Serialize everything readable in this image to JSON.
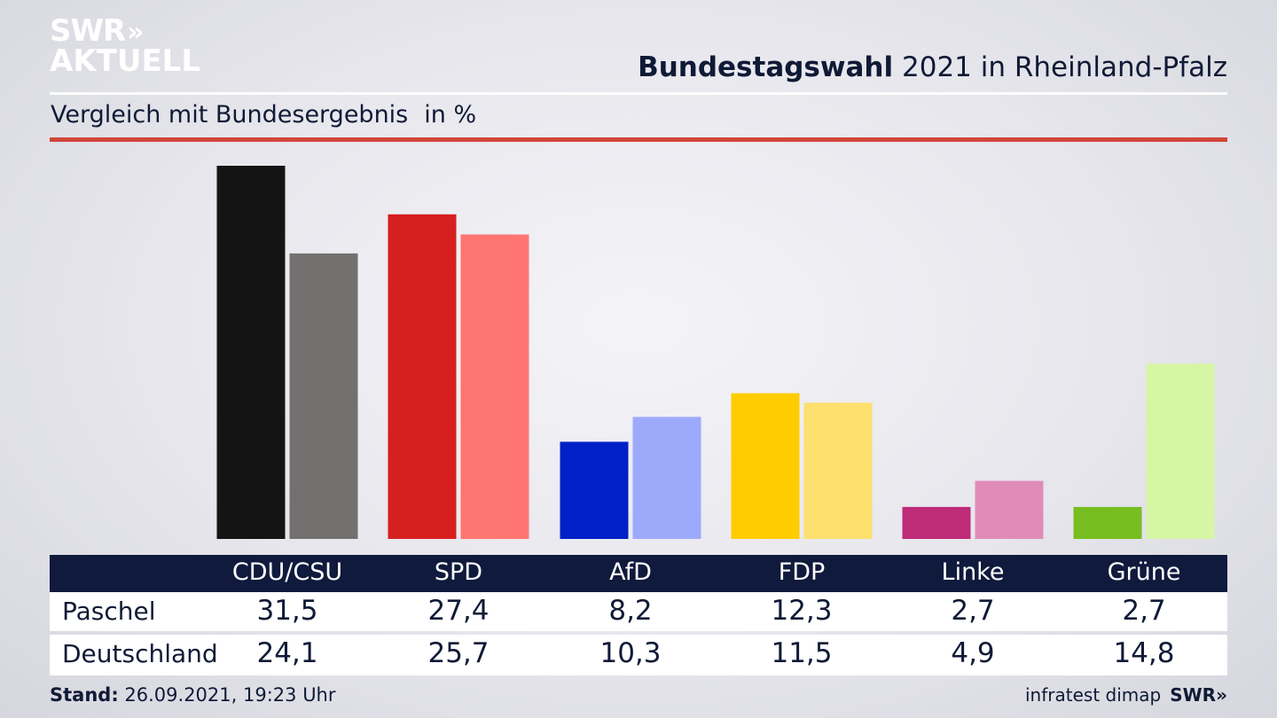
{
  "logo": {
    "line1": "SWR",
    "arrows": "»",
    "line2": "AKTUELL"
  },
  "header": {
    "title_bold": "Bundestagswahl",
    "title_rest": "2021 in Rheinland-Pfalz"
  },
  "subheader": {
    "text": "Vergleich mit Bundesergebnis",
    "unit": "in %"
  },
  "colors": {
    "accent_rule": "#d2463a",
    "table_header_bg": "#0f1a3c",
    "text_dark": "#0f1a36"
  },
  "chart_data": {
    "type": "bar",
    "categories": [
      "CDU/CSU",
      "SPD",
      "AfD",
      "FDP",
      "Linke",
      "Grüne"
    ],
    "series": [
      {
        "name": "Paschel",
        "values": [
          31.5,
          27.4,
          8.2,
          12.3,
          2.7,
          2.7
        ],
        "colors": [
          "#141414",
          "#d61f1f",
          "#0020c8",
          "#ffcc00",
          "#be2c78",
          "#78be20"
        ]
      },
      {
        "name": "Deutschland",
        "values": [
          24.1,
          25.7,
          10.3,
          11.5,
          4.9,
          14.8
        ],
        "colors": [
          "#737170",
          "#ff7571",
          "#9daafc",
          "#fde06e",
          "#e18bb8",
          "#d6f6a6"
        ]
      }
    ],
    "ylim": [
      0,
      31.5
    ],
    "grid": false,
    "legend": "table below chart"
  },
  "table": {
    "columns": [
      "CDU/CSU",
      "SPD",
      "AfD",
      "FDP",
      "Linke",
      "Grüne"
    ],
    "rows": [
      {
        "label": "Paschel",
        "values": [
          "31,5",
          "27,4",
          "8,2",
          "12,3",
          "2,7",
          "2,7"
        ]
      },
      {
        "label": "Deutschland",
        "values": [
          "24,1",
          "25,7",
          "10,3",
          "11,5",
          "4,9",
          "14,8"
        ]
      }
    ]
  },
  "footer": {
    "stand_label": "Stand:",
    "stand_value": "26.09.2021, 19:23 Uhr",
    "source": "infratest dimap",
    "brand": "SWR»"
  }
}
